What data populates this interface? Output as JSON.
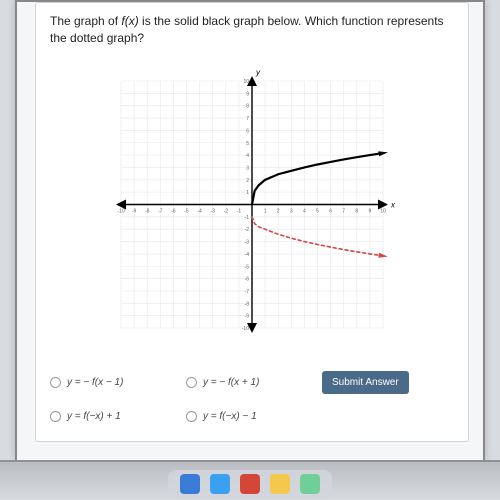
{
  "question": {
    "prefix": "The graph of ",
    "fx": "f(x)",
    "rest": " is the solid black graph below. Which function represents the dotted graph?"
  },
  "axis_labels": {
    "x": "x",
    "y": "y"
  },
  "graph": {
    "type": "line",
    "xlim": [
      -10,
      10
    ],
    "ylim": [
      -10,
      10
    ],
    "tick_step": 1,
    "grid_color": "#e6e8ec",
    "axis_color": "#000000",
    "background_color": "#ffffff",
    "series": [
      {
        "name": "solid",
        "color": "#000000",
        "width": 2.2,
        "dash": "none",
        "points": [
          [
            0,
            0
          ],
          [
            0.2,
            1.1
          ],
          [
            0.5,
            1.55
          ],
          [
            1,
            2
          ],
          [
            2,
            2.45
          ],
          [
            3,
            2.73
          ],
          [
            4,
            3
          ],
          [
            5,
            3.24
          ],
          [
            6,
            3.45
          ],
          [
            7,
            3.65
          ],
          [
            8,
            3.83
          ],
          [
            9,
            4
          ],
          [
            10,
            4.16
          ]
        ]
      },
      {
        "name": "dotted",
        "color": "#d04848",
        "width": 1.6,
        "dash": "3,3",
        "points": [
          [
            0,
            -1
          ],
          [
            0.2,
            -1.55
          ],
          [
            0.5,
            -1.8
          ],
          [
            1,
            -2
          ],
          [
            2,
            -2.41
          ],
          [
            3,
            -2.73
          ],
          [
            4,
            -3
          ],
          [
            5,
            -3.24
          ],
          [
            6,
            -3.45
          ],
          [
            7,
            -3.65
          ],
          [
            8,
            -3.83
          ],
          [
            9,
            -4
          ],
          [
            10,
            -4.16
          ]
        ]
      }
    ],
    "arrow_size": 5,
    "tick_label_fontsize": 5,
    "tick_label_color": "#666666"
  },
  "options": {
    "a": "y = − f(x − 1)",
    "b": "y = − f(x + 1)",
    "c": "y = f(−x) + 1",
    "d": "y = f(−x) − 1"
  },
  "submit_label": "Submit Answer",
  "dock_colors": [
    "#3a7bd5",
    "#3aa0f0",
    "#d44638",
    "#f2c94c",
    "#6fcf97"
  ]
}
